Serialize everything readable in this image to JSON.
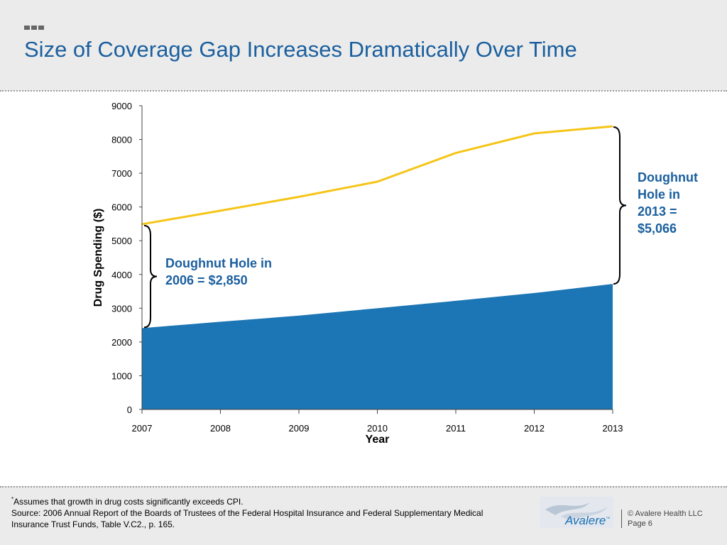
{
  "title": "Size of Coverage Gap Increases Dramatically Over Time",
  "chart_data": {
    "type": "area",
    "x": [
      2007,
      2008,
      2009,
      2010,
      2011,
      2012,
      2013
    ],
    "tick_labels_x": [
      "2007",
      "2008",
      "2009",
      "2010",
      "2011",
      "2012",
      "2013"
    ],
    "tick_labels_y": [
      "0",
      "1000",
      "2000",
      "3000",
      "4000",
      "5000",
      "6000",
      "7000",
      "8000",
      "9000"
    ],
    "ylim": [
      0,
      9000
    ],
    "xlabel": "Year",
    "ylabel": "Drug Spending ($)",
    "series": [
      {
        "kind": "area",
        "values": [
          2410,
          2600,
          2780,
          3000,
          3220,
          3450,
          3720
        ],
        "color": "#1c75b4"
      },
      {
        "kind": "line",
        "values": [
          5490,
          5890,
          6300,
          6750,
          7600,
          8180,
          8390
        ],
        "color": "#f5c518"
      }
    ],
    "grid": false
  },
  "annotations": {
    "gap_2006": "Doughnut Hole in 2006 = $2,850",
    "gap_2013": "Doughnut Hole in 2013 = $5,066"
  },
  "footnote": {
    "marker": "*",
    "assumption": "Assumes that growth in drug costs significantly exceeds CPI.",
    "source": "Source: 2006 Annual Report of the Boards of Trustees of the Federal Hospital Insurance and Federal Supplementary Medical Insurance Trust Funds, Table V.C2., p. 165."
  },
  "logo": {
    "name": "Avalere",
    "tm": "™"
  },
  "copyright": "© Avalere Health LLC",
  "page_label": "Page 6"
}
